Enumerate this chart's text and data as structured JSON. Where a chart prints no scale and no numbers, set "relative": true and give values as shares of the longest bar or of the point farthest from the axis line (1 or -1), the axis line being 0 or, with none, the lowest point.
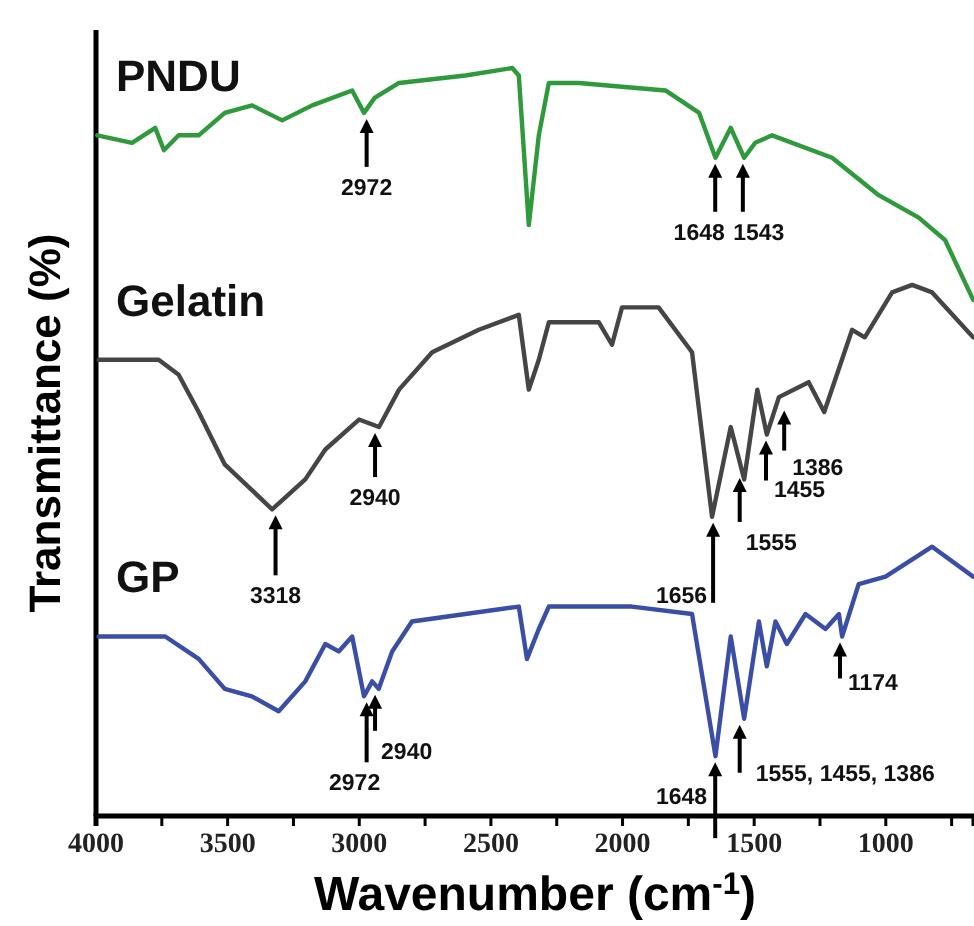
{
  "chart_data": {
    "type": "line",
    "relative": true,
    "xlabel": "Wavenumber (cm$^{-1}$)",
    "ylabel": "Transmittance (%)",
    "xlim": [
      4000,
      665
    ],
    "xticks": [
      4000,
      {
        "value": 3750,
        "label": null
      },
      3500,
      {
        "value": 3250,
        "label": null
      },
      3000,
      {
        "value": 2750,
        "label": null
      },
      2500,
      {
        "value": 2250,
        "label": null
      },
      2000,
      {
        "value": 1750,
        "label": null
      },
      1500,
      {
        "value": 1250,
        "label": null
      },
      1000,
      {
        "value": 750,
        "label": null
      }
    ],
    "grid": false,
    "marker": "none",
    "line_style": "solid",
    "series": [
      {
        "name": "PNDU",
        "color": "#2e9a3c",
        "x": [
          3995,
          3863,
          3775,
          3742,
          3686,
          3635,
          3610,
          3511,
          3407,
          3293,
          3179,
          3027,
          2982,
          2942,
          2849,
          2597,
          2419,
          2394,
          2356,
          2318,
          2280,
          2166,
          1837,
          1709,
          1647,
          1589,
          1538,
          1496,
          1432,
          1204,
          1027,
          875,
          775,
          668
        ],
        "values": [
          0.91,
          0.9,
          0.92,
          0.89,
          0.91,
          0.91,
          0.91,
          0.94,
          0.95,
          0.93,
          0.95,
          0.97,
          0.94,
          0.96,
          0.98,
          0.99,
          1,
          0.99,
          0.79,
          0.91,
          0.98,
          0.98,
          0.97,
          0.94,
          0.88,
          0.92,
          0.88,
          0.9,
          0.91,
          0.88,
          0.83,
          0.8,
          0.77,
          0.69
        ]
      },
      {
        "name": "Gelatin",
        "color": "#454545",
        "x": [
          3990,
          3762,
          3686,
          3610,
          3511,
          3331,
          3205,
          3129,
          3001,
          2925,
          2849,
          2723,
          2546,
          2394,
          2356,
          2318,
          2280,
          2090,
          2040,
          2002,
          1863,
          1736,
          1660,
          1589,
          1538,
          1488,
          1452,
          1406,
          1293,
          1234,
          1128,
          1080,
          976,
          900,
          824,
          668
        ],
        "values": [
          0.61,
          0.61,
          0.59,
          0.54,
          0.47,
          0.41,
          0.45,
          0.49,
          0.53,
          0.52,
          0.57,
          0.62,
          0.65,
          0.67,
          0.57,
          0.61,
          0.66,
          0.66,
          0.63,
          0.68,
          0.68,
          0.62,
          0.4,
          0.52,
          0.45,
          0.57,
          0.51,
          0.56,
          0.58,
          0.54,
          0.65,
          0.64,
          0.7,
          0.71,
          0.7,
          0.64
        ]
      },
      {
        "name": "GP",
        "color": "#3a4ea6",
        "x": [
          3990,
          3737,
          3610,
          3511,
          3408,
          3306,
          3205,
          3129,
          3078,
          3027,
          2982,
          2951,
          2926,
          2875,
          2800,
          2597,
          2394,
          2363,
          2318,
          2280,
          1964,
          1736,
          1647,
          1589,
          1538,
          1482,
          1452,
          1419,
          1376,
          1305,
          1229,
          1178,
          1166,
          1103,
          1001,
          824,
          668
        ],
        "values": [
          0.24,
          0.24,
          0.21,
          0.17,
          0.16,
          0.14,
          0.18,
          0.23,
          0.22,
          0.24,
          0.16,
          0.18,
          0.17,
          0.22,
          0.26,
          0.27,
          0.28,
          0.21,
          0.25,
          0.28,
          0.28,
          0.27,
          0.08,
          0.24,
          0.13,
          0.26,
          0.2,
          0.26,
          0.23,
          0.27,
          0.25,
          0.27,
          0.24,
          0.31,
          0.32,
          0.36,
          0.32
        ]
      }
    ],
    "annotations": [
      {
        "text": "2972",
        "x": 2972,
        "y": 0.94
      },
      {
        "text": "1648",
        "x": 1648,
        "y": 0.88
      },
      {
        "text": "1543",
        "x": 1543,
        "y": 0.88
      },
      {
        "text": "3318",
        "x": 3318,
        "y": 0.41
      },
      {
        "text": "2940",
        "x": 2940,
        "y": 0.52
      },
      {
        "text": "1656",
        "x": 1656,
        "y": 0.4
      },
      {
        "text": "1555",
        "x": 1555,
        "y": 0.46
      },
      {
        "text": "1455",
        "x": 1455,
        "y": 0.51
      },
      {
        "text": "1386",
        "x": 1386,
        "y": 0.55
      },
      {
        "text": "2972",
        "x": 2972,
        "y": 0.16
      },
      {
        "text": "2940",
        "x": 2940,
        "y": 0.17
      },
      {
        "text": "1648",
        "x": 1648,
        "y": 0.08
      },
      {
        "text": "1555, 1455, 1386",
        "x": 1555,
        "y": 0.13
      },
      {
        "text": "1174",
        "x": 1174,
        "y": 0.24
      }
    ]
  }
}
